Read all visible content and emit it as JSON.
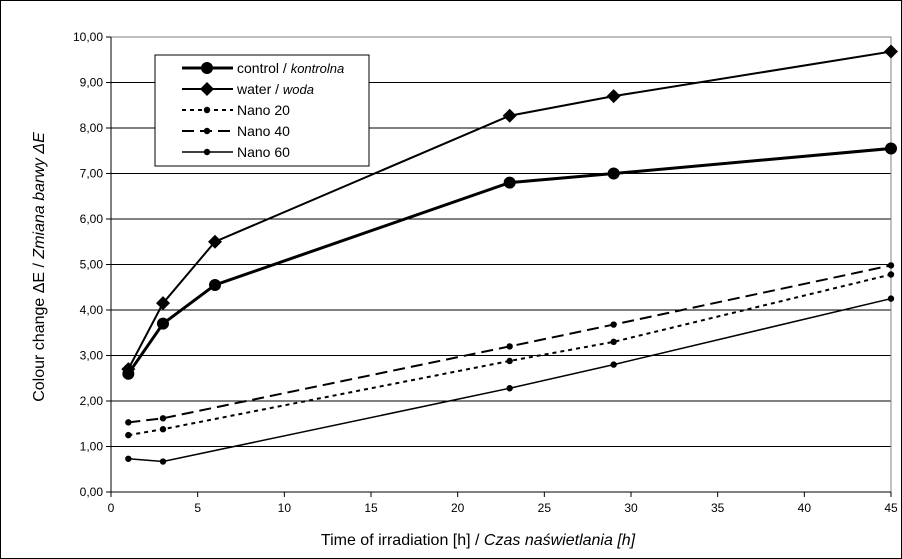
{
  "chart_data": {
    "type": "line",
    "x": [
      1,
      3,
      6,
      23,
      29,
      45
    ],
    "xlim": [
      0,
      45
    ],
    "ylim": [
      0,
      10
    ],
    "xticks": [
      "0",
      "5",
      "10",
      "15",
      "20",
      "25",
      "30",
      "35",
      "40",
      "45"
    ],
    "yticks": [
      "0,00",
      "1,00",
      "2,00",
      "3,00",
      "4,00",
      "5,00",
      "6,00",
      "7,00",
      "8,00",
      "9,00",
      "10,00"
    ],
    "xlabel": {
      "main": "Time of irradiation [h] / ",
      "italic": "Czas naświetlania [h]"
    },
    "ylabel": {
      "main": "Colour change ΔE / ",
      "italic": "Zmiana barwy ΔE"
    },
    "grid": "horizontal",
    "legend_position": "top-left",
    "series": [
      {
        "name": "control / ",
        "name_italic": "kontrolna",
        "marker": "circle",
        "dash": "solid",
        "width": 3,
        "values": [
          2.6,
          3.7,
          4.55,
          6.8,
          7.0,
          7.55
        ]
      },
      {
        "name": "water / ",
        "name_italic": "woda",
        "marker": "diamond",
        "dash": "solid",
        "width": 2,
        "values": [
          2.7,
          4.15,
          5.5,
          8.27,
          8.7,
          9.68
        ]
      },
      {
        "name": "Nano 20",
        "name_italic": "",
        "marker": "small-circle",
        "dash": "dotted",
        "width": 2,
        "values": [
          1.25,
          1.38,
          null,
          2.88,
          3.3,
          4.78
        ]
      },
      {
        "name": "Nano 40",
        "name_italic": "",
        "marker": "small-circle",
        "dash": "dashed",
        "width": 2,
        "values": [
          1.53,
          1.62,
          null,
          3.2,
          3.68,
          4.98
        ]
      },
      {
        "name": "Nano 60",
        "name_italic": "",
        "marker": "small-circle",
        "dash": "solid",
        "width": 1.5,
        "values": [
          0.73,
          0.67,
          null,
          2.28,
          2.8,
          4.25
        ]
      }
    ]
  }
}
